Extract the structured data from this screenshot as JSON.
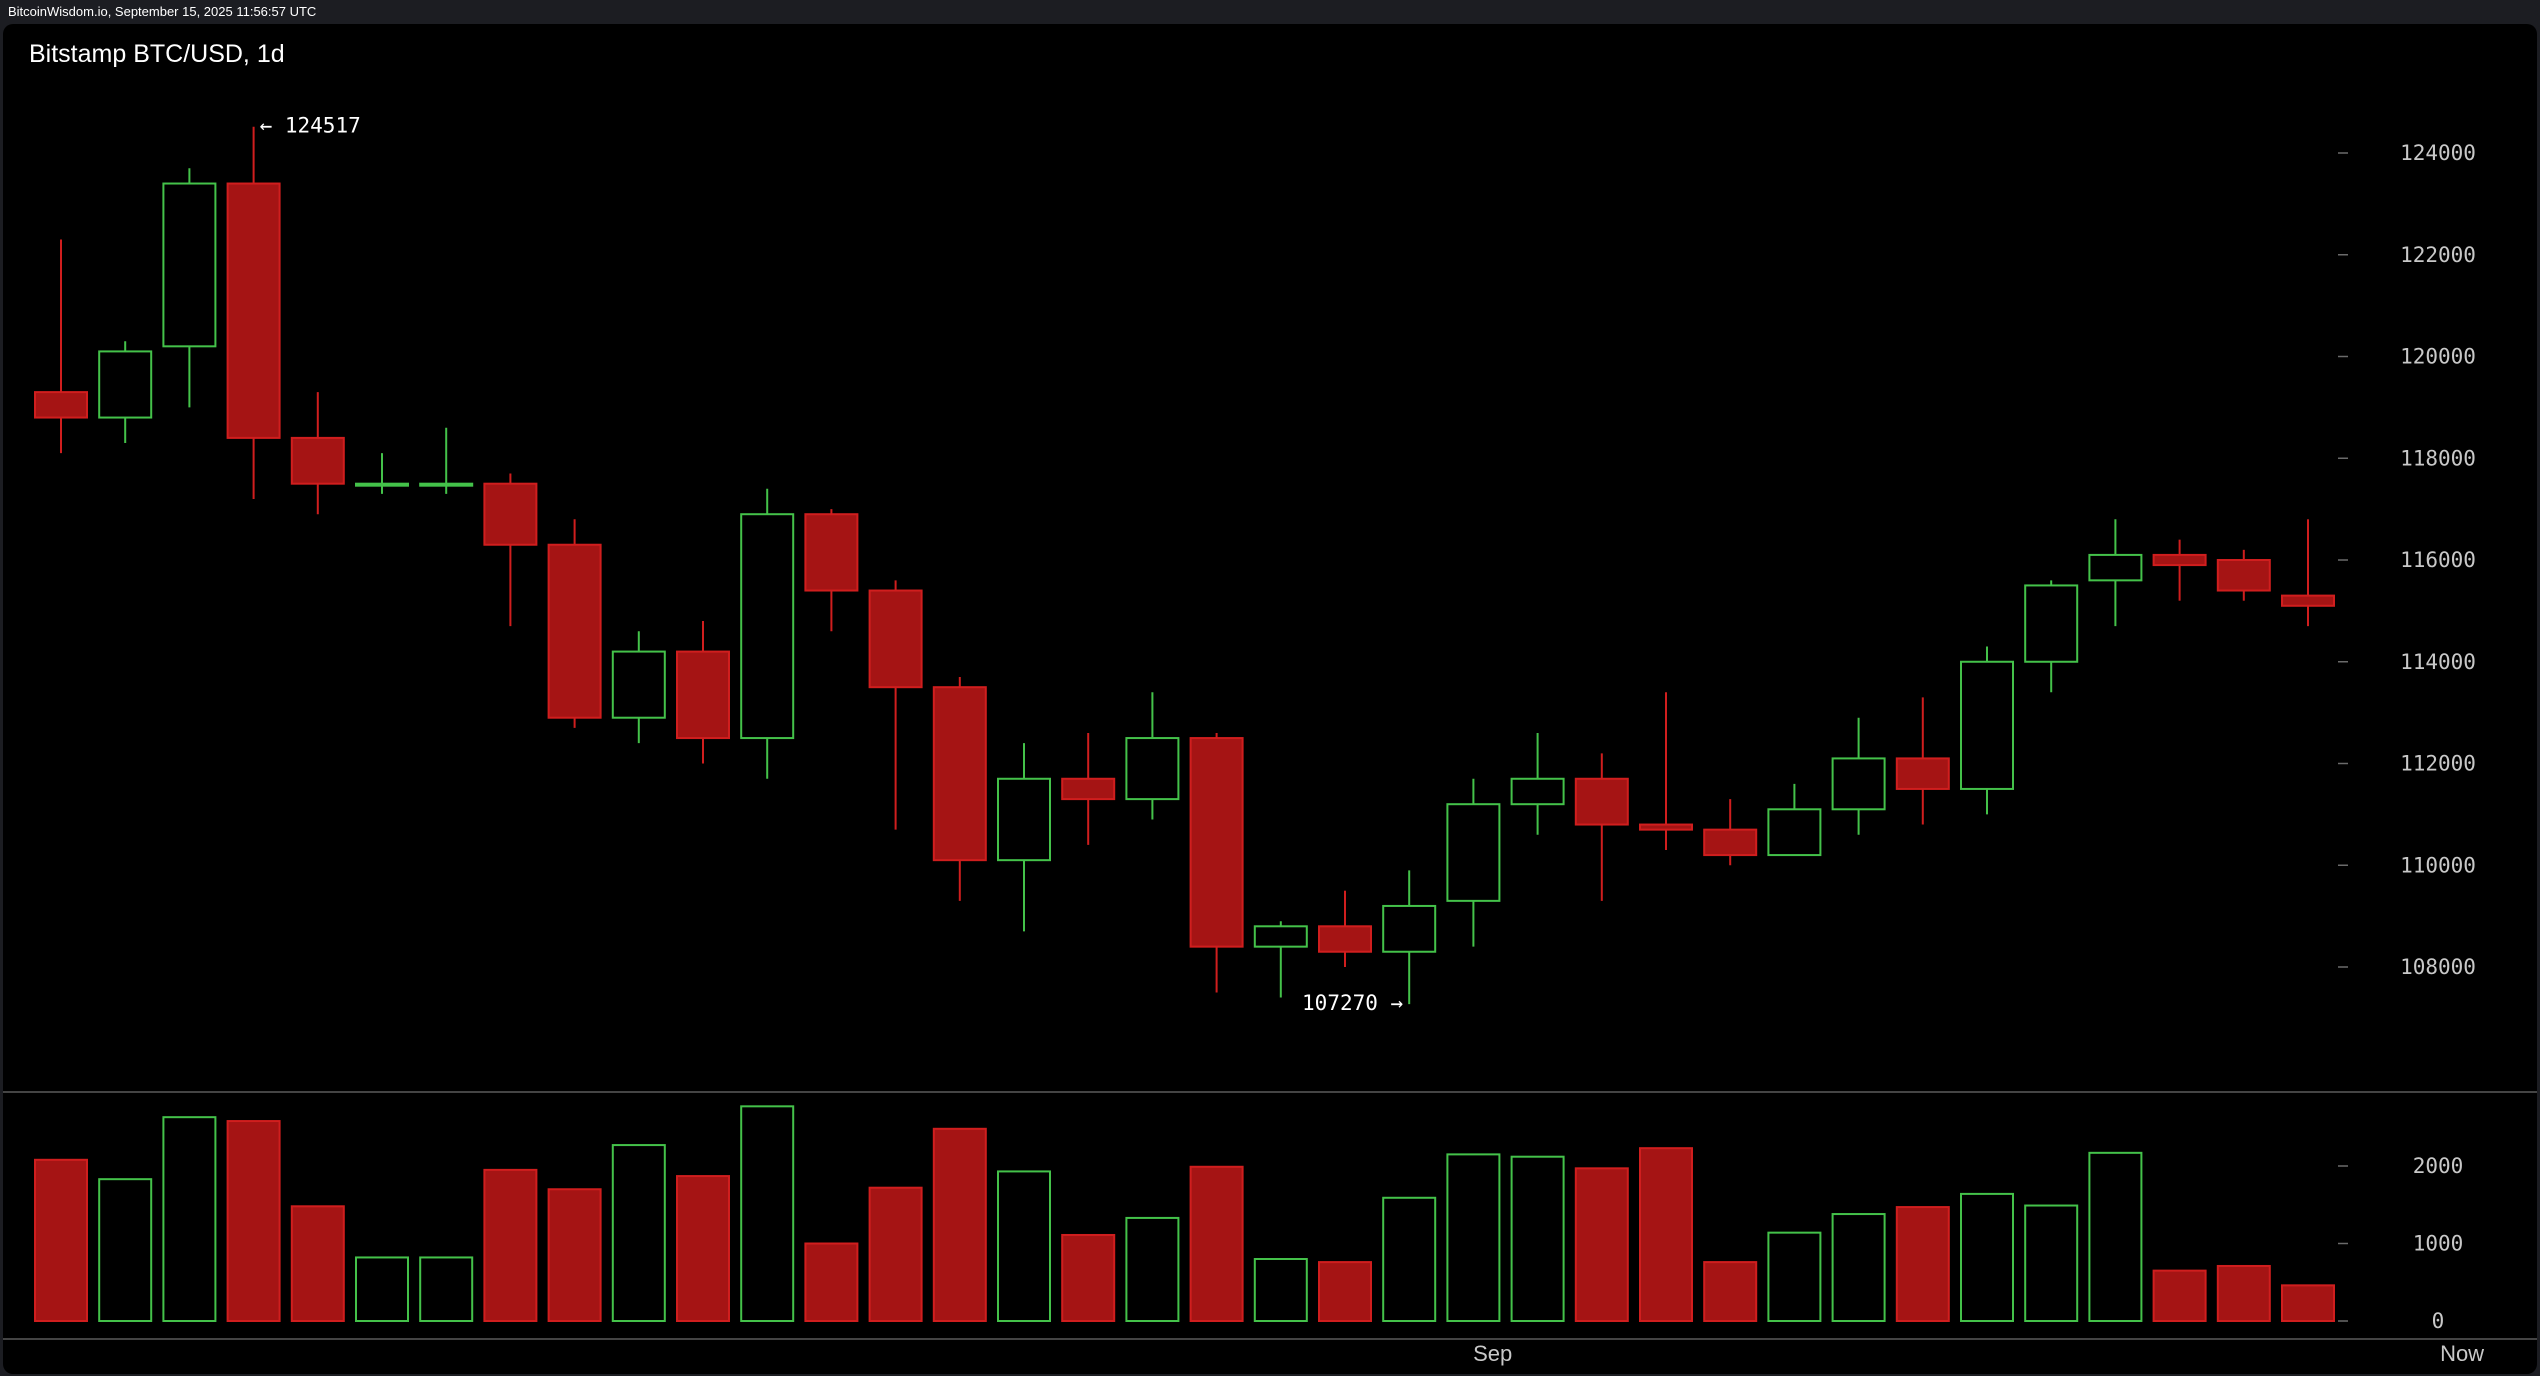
{
  "header": {
    "watermark": "BitcoinWisdom.io, September 15, 2025 11:56:57 UTC"
  },
  "chart_data": {
    "type": "candlestick",
    "title": "Bitstamp BTC/USD, 1d",
    "colors": {
      "up": "#44c24a",
      "down": "#a51414",
      "down_outline": "#d01e1e",
      "background": "#000000"
    },
    "price_axis": {
      "ticks": [
        108000,
        110000,
        112000,
        114000,
        116000,
        118000,
        120000,
        122000,
        124000
      ],
      "labels": [
        "108000",
        "110000",
        "112000",
        "114000",
        "116000",
        "118000",
        "120000",
        "122000",
        "124000"
      ],
      "range": [
        106000,
        125500
      ]
    },
    "volume_axis": {
      "ticks": [
        0,
        1000,
        2000
      ],
      "labels": [
        "0",
        "1000",
        "2000"
      ],
      "range": [
        0,
        3000
      ]
    },
    "x_labels": [
      {
        "label": "Sep",
        "index": 22.3
      },
      {
        "label": "Now",
        "index": 37.4
      }
    ],
    "candles": [
      {
        "o": 119300,
        "h": 122300,
        "l": 118100,
        "c": 118800,
        "v": 2080
      },
      {
        "o": 118800,
        "h": 120300,
        "l": 118300,
        "c": 120100,
        "v": 1830
      },
      {
        "o": 120200,
        "h": 123700,
        "l": 119000,
        "c": 123400,
        "v": 2630
      },
      {
        "o": 123400,
        "h": 124517,
        "l": 117200,
        "c": 118400,
        "v": 2580
      },
      {
        "o": 118400,
        "h": 119300,
        "l": 116900,
        "c": 117500,
        "v": 1480
      },
      {
        "o": 117500,
        "h": 118100,
        "l": 117300,
        "c": 117500,
        "v": 820
      },
      {
        "o": 117500,
        "h": 118600,
        "l": 117300,
        "c": 117500,
        "v": 820
      },
      {
        "o": 117500,
        "h": 117700,
        "l": 114700,
        "c": 116300,
        "v": 1950
      },
      {
        "o": 116300,
        "h": 116800,
        "l": 112700,
        "c": 112900,
        "v": 1700
      },
      {
        "o": 112900,
        "h": 114600,
        "l": 112400,
        "c": 114200,
        "v": 2270
      },
      {
        "o": 114200,
        "h": 114800,
        "l": 112000,
        "c": 112500,
        "v": 1870
      },
      {
        "o": 112500,
        "h": 117400,
        "l": 111700,
        "c": 116900,
        "v": 2770
      },
      {
        "o": 116900,
        "h": 117000,
        "l": 114600,
        "c": 115400,
        "v": 1000
      },
      {
        "o": 115400,
        "h": 115600,
        "l": 110700,
        "c": 113500,
        "v": 1720
      },
      {
        "o": 113500,
        "h": 113700,
        "l": 109300,
        "c": 110100,
        "v": 2480
      },
      {
        "o": 110100,
        "h": 112400,
        "l": 108700,
        "c": 111700,
        "v": 1930
      },
      {
        "o": 111700,
        "h": 112600,
        "l": 110400,
        "c": 111300,
        "v": 1110
      },
      {
        "o": 111300,
        "h": 113400,
        "l": 110900,
        "c": 112500,
        "v": 1330
      },
      {
        "o": 112500,
        "h": 112600,
        "l": 107500,
        "c": 108400,
        "v": 1990
      },
      {
        "o": 108400,
        "h": 108900,
        "l": 107400,
        "c": 108800,
        "v": 800
      },
      {
        "o": 108800,
        "h": 109500,
        "l": 108000,
        "c": 108300,
        "v": 760
      },
      {
        "o": 108300,
        "h": 109900,
        "l": 107270,
        "c": 109200,
        "v": 1590
      },
      {
        "o": 109300,
        "h": 111700,
        "l": 108400,
        "c": 111200,
        "v": 2150
      },
      {
        "o": 111200,
        "h": 112600,
        "l": 110600,
        "c": 111700,
        "v": 2120
      },
      {
        "o": 111700,
        "h": 112200,
        "l": 109300,
        "c": 110800,
        "v": 1970
      },
      {
        "o": 110800,
        "h": 113400,
        "l": 110300,
        "c": 110700,
        "v": 2230
      },
      {
        "o": 110700,
        "h": 111300,
        "l": 110000,
        "c": 110200,
        "v": 760
      },
      {
        "o": 110200,
        "h": 111600,
        "l": 110200,
        "c": 111100,
        "v": 1140
      },
      {
        "o": 111100,
        "h": 112900,
        "l": 110600,
        "c": 112100,
        "v": 1380
      },
      {
        "o": 112100,
        "h": 113300,
        "l": 110800,
        "c": 111500,
        "v": 1470
      },
      {
        "o": 111500,
        "h": 114300,
        "l": 111000,
        "c": 114000,
        "v": 1640
      },
      {
        "o": 114000,
        "h": 115600,
        "l": 113400,
        "c": 115500,
        "v": 1490
      },
      {
        "o": 115600,
        "h": 116800,
        "l": 114700,
        "c": 116100,
        "v": 2170
      },
      {
        "o": 116100,
        "h": 116400,
        "l": 115200,
        "c": 115900,
        "v": 650
      },
      {
        "o": 116000,
        "h": 116200,
        "l": 115200,
        "c": 115400,
        "v": 710
      },
      {
        "o": 115300,
        "h": 116800,
        "l": 114700,
        "c": 115100,
        "v": 460
      }
    ],
    "annotations": [
      {
        "text": "← 124517",
        "candle": 3,
        "price": 124517,
        "side": "right"
      },
      {
        "text": "107270 →",
        "candle": 21,
        "price": 107270,
        "side": "left"
      }
    ]
  }
}
